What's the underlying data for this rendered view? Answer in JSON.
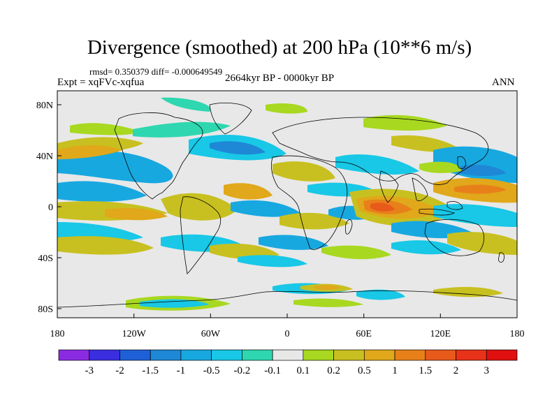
{
  "title": "Divergence (smoothed) at 200 hPa (10**6 m/s)",
  "stats": "rmsd= 0.350379 diff= -0.000649549",
  "experiment": "Expt = xqFVc-xqfua",
  "period": "2664kyr BP - 0000kyr BP",
  "season": "ANN",
  "lon_ticks": [
    "180",
    "120W",
    "60W",
    "0",
    "60E",
    "120E",
    "180"
  ],
  "lat_ticks": [
    "80N",
    "40N",
    "0",
    "40S",
    "80S"
  ],
  "colorbar": {
    "labels": [
      "-3",
      "-2",
      "-1.5",
      "-1",
      "-0.5",
      "-0.2",
      "-0.1",
      "0.1",
      "0.2",
      "0.5",
      "1",
      "1.5",
      "2",
      "3"
    ],
    "colors": [
      "#8a2be2",
      "#3a2ee0",
      "#1f5fd8",
      "#1e88d6",
      "#18a8e0",
      "#18c8e6",
      "#2ed7b0",
      "#e8e8e8",
      "#a8d820",
      "#c8c020",
      "#e0a81a",
      "#e8801a",
      "#e85a1a",
      "#e8321a",
      "#e01010"
    ]
  },
  "map_data": {
    "background_color": "#e8e8e8",
    "regions": [
      {
        "cat": "positive",
        "level": "0.2",
        "color": "#a8d820"
      },
      {
        "cat": "positive",
        "level": "0.5",
        "color": "#c8c020"
      },
      {
        "cat": "positive",
        "level": "1",
        "color": "#e0a81a"
      },
      {
        "cat": "positive",
        "level": "1.5",
        "color": "#e8801a"
      },
      {
        "cat": "positive",
        "level": "2",
        "color": "#e85a1a"
      },
      {
        "cat": "negative",
        "level": "-0.1",
        "color": "#2ed7b0"
      },
      {
        "cat": "negative",
        "level": "-0.2",
        "color": "#18c8e6"
      },
      {
        "cat": "negative",
        "level": "-0.5",
        "color": "#18a8e0"
      },
      {
        "cat": "negative",
        "level": "-1",
        "color": "#1e88d6"
      }
    ]
  }
}
